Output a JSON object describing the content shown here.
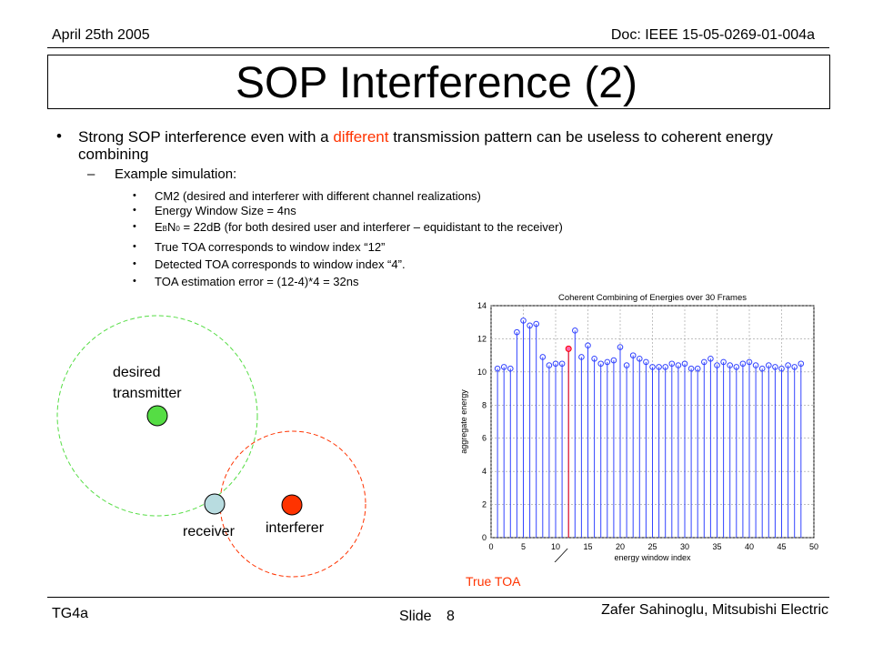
{
  "header": {
    "date": "April 25th 2005",
    "doc": "Doc: IEEE 15-05-0269-01-004a"
  },
  "title": "SOP Interference (2)",
  "bullet": {
    "pre": "Strong SOP interference even with a ",
    "highlight": "different",
    "post": " transmission pattern can be useless to coherent energy combining"
  },
  "sub_heading": "Example simulation:",
  "items": [
    "CM2 (desired and interferer with different channel realizations)",
    "Energy Window Size = 4ns",
    "",
    "True TOA corresponds to window index “12”",
    "Detected TOA corresponds to window  index “4”.",
    "TOA estimation error = (12-4)*4 = 32ns"
  ],
  "ebno": {
    "e": "E",
    "b": "B",
    "n": "N",
    "zero": "0",
    "rest": " = 22dB (for both desired user and interferer – equidistant to the receiver)"
  },
  "diagram": {
    "desired_line1": "desired",
    "desired_line2": "transmitter",
    "receiver": "receiver",
    "interferer": "interferer",
    "colors": {
      "desired": "#55dd44",
      "interferer": "#ff3300",
      "receiver": "#b8dce0"
    }
  },
  "annotation": "True TOA",
  "chart_data": {
    "type": "stem",
    "title": "Coherent Combining of Energies over 30 Frames",
    "xlabel": "energy window index",
    "ylabel": "aggregate energy",
    "xlim": [
      0,
      50
    ],
    "ylim": [
      0,
      14
    ],
    "xticks": [
      "0",
      "5",
      "10",
      "15",
      "20",
      "25",
      "30",
      "35",
      "40",
      "45",
      "50"
    ],
    "yticks": [
      "0",
      "2",
      "4",
      "6",
      "8",
      "10",
      "12",
      "14"
    ],
    "grid": true,
    "x": [
      1,
      2,
      3,
      4,
      5,
      6,
      7,
      8,
      9,
      10,
      11,
      12,
      13,
      14,
      15,
      16,
      17,
      18,
      19,
      20,
      21,
      22,
      23,
      24,
      25,
      26,
      27,
      28,
      29,
      30,
      31,
      32,
      33,
      34,
      35,
      36,
      37,
      38,
      39,
      40,
      41,
      42,
      43,
      44,
      45,
      46,
      47,
      48
    ],
    "values": [
      10.2,
      10.3,
      10.2,
      12.4,
      13.1,
      12.8,
      12.9,
      10.9,
      10.4,
      10.5,
      10.5,
      11.4,
      12.5,
      10.9,
      11.6,
      10.8,
      10.5,
      10.6,
      10.7,
      11.5,
      10.4,
      11.0,
      10.8,
      10.6,
      10.3,
      10.3,
      10.3,
      10.5,
      10.4,
      10.5,
      10.2,
      10.2,
      10.6,
      10.8,
      10.4,
      10.6,
      10.4,
      10.3,
      10.5,
      10.6,
      10.4,
      10.2,
      10.4,
      10.3,
      10.2,
      10.4,
      10.3,
      10.5
    ],
    "true_toa": {
      "x": 12,
      "y": 11.4
    }
  },
  "footer": {
    "left": "TG4a",
    "slide_label": "Slide",
    "slide_number": "8",
    "author": "Zafer Sahinoglu, Mitsubishi Electric"
  }
}
